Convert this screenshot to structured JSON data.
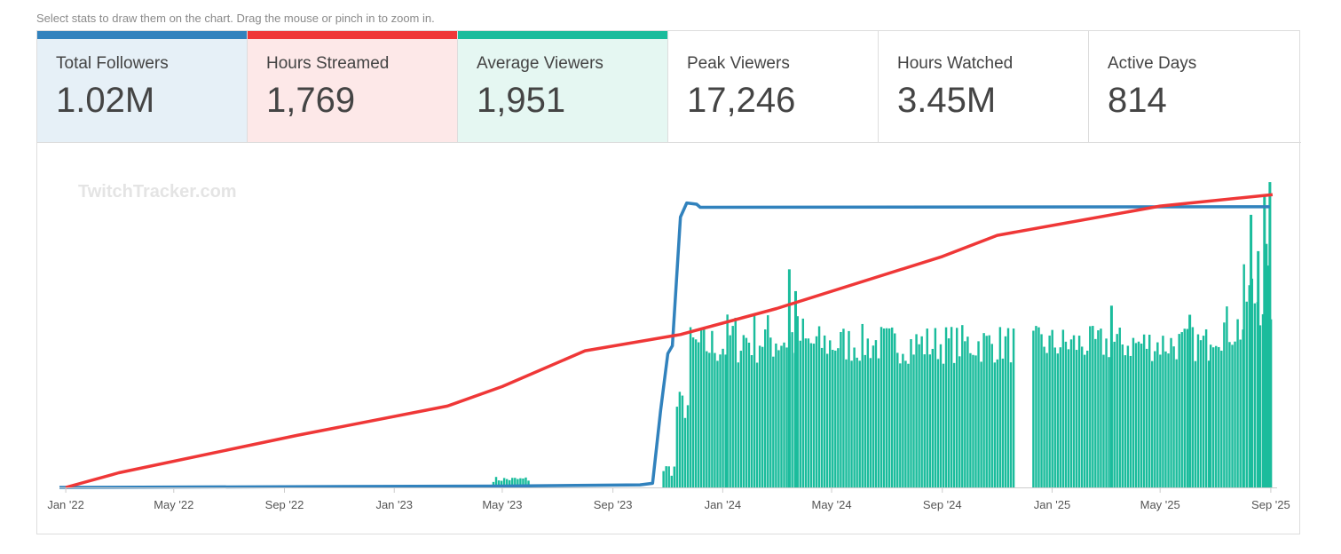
{
  "hint": "Select stats to draw them on the chart. Drag the mouse or pinch in to zoom in.",
  "stats": [
    {
      "label": "Total Followers",
      "value": "1.02M",
      "selected": true,
      "color": "#3182bd",
      "bg": "#e6f0f7"
    },
    {
      "label": "Hours Streamed",
      "value": "1,769",
      "selected": true,
      "color": "#ef3737",
      "bg": "#fde8e8"
    },
    {
      "label": "Average Viewers",
      "value": "1,951",
      "selected": true,
      "color": "#1abc9c",
      "bg": "#e5f7f2"
    },
    {
      "label": "Peak Viewers",
      "value": "17,246",
      "selected": false
    },
    {
      "label": "Hours Watched",
      "value": "3.45M",
      "selected": false
    },
    {
      "label": "Active Days",
      "value": "814",
      "selected": false
    }
  ],
  "watermark": "TwitchTracker.com",
  "chart_data": {
    "type": "line",
    "x_range": [
      "2021-12-25",
      "2025-09-08"
    ],
    "xticks": [
      "Jan '22",
      "May '22",
      "Sep '22",
      "Jan '23",
      "May '23",
      "Sep '23",
      "Jan '24",
      "May '24",
      "Sep '24",
      "Jan '25",
      "May '25",
      "Sep '25"
    ],
    "xtick_dates": [
      "2022-01-01",
      "2022-05-01",
      "2022-09-01",
      "2023-01-01",
      "2023-05-01",
      "2023-09-01",
      "2024-01-01",
      "2024-05-01",
      "2024-09-01",
      "2025-01-01",
      "2025-05-01",
      "2025-09-01"
    ],
    "grid": false,
    "legend": "none",
    "series": [
      {
        "name": "Total Followers",
        "type": "line",
        "color": "#3182bd",
        "scale_max": 1200000,
        "points": [
          [
            "2021-12-25",
            0
          ],
          [
            "2023-05-01",
            5000
          ],
          [
            "2023-10-01",
            10000
          ],
          [
            "2023-10-15",
            16000
          ],
          [
            "2023-10-24",
            300000
          ],
          [
            "2023-11-01",
            520000
          ],
          [
            "2023-11-06",
            550000
          ],
          [
            "2023-11-15",
            1050000
          ],
          [
            "2023-11-22",
            1105000
          ],
          [
            "2023-12-03",
            1100000
          ],
          [
            "2023-12-07",
            1088000
          ],
          [
            "2025-08-31",
            1090000
          ]
        ]
      },
      {
        "name": "Hours Streamed",
        "type": "line",
        "color": "#ef3737",
        "scale_max": 1900,
        "points": [
          [
            "2022-01-01",
            0
          ],
          [
            "2022-03-01",
            90
          ],
          [
            "2022-09-15",
            320
          ],
          [
            "2023-03-01",
            500
          ],
          [
            "2023-05-01",
            620
          ],
          [
            "2023-08-01",
            840
          ],
          [
            "2023-11-15",
            940
          ],
          [
            "2024-03-01",
            1100
          ],
          [
            "2024-09-01",
            1420
          ],
          [
            "2024-11-01",
            1550
          ],
          [
            "2025-05-01",
            1730
          ],
          [
            "2025-09-03",
            1800
          ]
        ]
      },
      {
        "name": "Average Viewers",
        "type": "bar",
        "color": "#1abc9c",
        "scale_max": 17000,
        "segments": [
          {
            "from": "2023-04-20",
            "to": "2023-05-30",
            "level": 450,
            "spread": 150
          },
          {
            "from": "2023-10-26",
            "to": "2023-11-10",
            "level": 1000,
            "spread": 400
          },
          {
            "from": "2023-11-10",
            "to": "2023-11-25",
            "level": 4500,
            "spread": 900
          },
          {
            "from": "2023-11-25",
            "to": "2024-01-05",
            "level": 7800,
            "spread": 1200
          },
          {
            "from": "2024-01-05",
            "to": "2024-04-01",
            "level": 8200,
            "spread": 1500
          },
          {
            "from": "2024-04-01",
            "to": "2024-11-20",
            "level": 7900,
            "spread": 1100
          },
          {
            "from": "2024-12-10",
            "to": "2025-06-25",
            "level": 7900,
            "spread": 1000
          },
          {
            "from": "2025-06-25",
            "to": "2025-08-01",
            "level": 8800,
            "spread": 1300
          },
          {
            "from": "2025-08-01",
            "to": "2025-09-03",
            "level": 10500,
            "spread": 1800
          }
        ],
        "peaks": [
          [
            "2024-03-15",
            12000
          ],
          [
            "2024-03-22",
            10800
          ],
          [
            "2025-03-08",
            10000
          ],
          [
            "2025-06-03",
            9500
          ],
          [
            "2025-08-10",
            15000
          ],
          [
            "2025-08-18",
            13000
          ],
          [
            "2025-08-25",
            16000
          ],
          [
            "2025-08-27",
            13400
          ],
          [
            "2025-08-31",
            16800
          ]
        ]
      }
    ]
  }
}
